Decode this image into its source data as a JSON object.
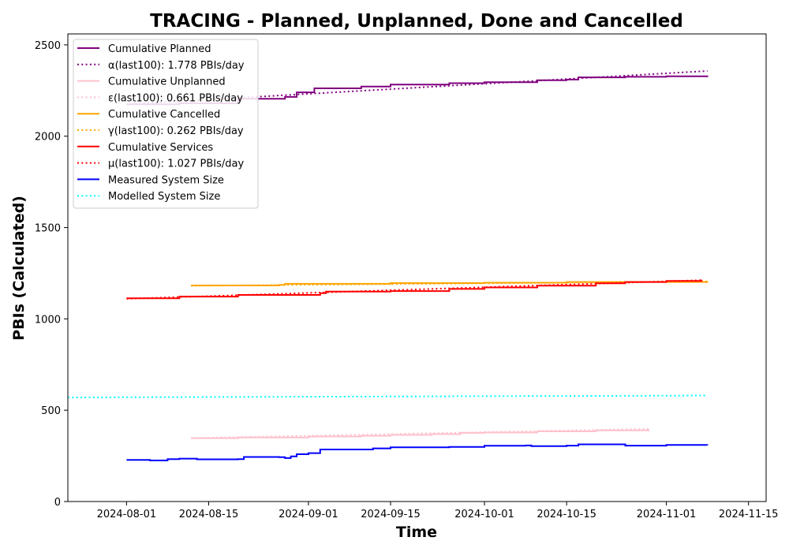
{
  "chart_data": {
    "type": "line",
    "title": "TRACING - Planned, Unplanned, Done  and Cancelled",
    "xlabel": "Time",
    "ylabel": "PBIs (Calculated)",
    "xlim": [
      "2024-07-22",
      "2024-11-18"
    ],
    "ylim": [
      0,
      2560
    ],
    "x_ticks": [
      "2024-08-01",
      "2024-08-15",
      "2024-09-01",
      "2024-09-15",
      "2024-10-01",
      "2024-10-15",
      "2024-11-01",
      "2024-11-15"
    ],
    "y_ticks": [
      0,
      500,
      1000,
      1500,
      2000,
      2500
    ],
    "grid": false,
    "legend_position": "top-left",
    "series": [
      {
        "name": "Cumulative Planned",
        "style": "solid",
        "color": "#800080",
        "points": [
          [
            "2024-08-01",
            2175
          ],
          [
            "2024-08-10",
            2180
          ],
          [
            "2024-08-20",
            2205
          ],
          [
            "2024-08-28",
            2215
          ],
          [
            "2024-08-30",
            2240
          ],
          [
            "2024-09-02",
            2262
          ],
          [
            "2024-09-10",
            2272
          ],
          [
            "2024-09-15",
            2283
          ],
          [
            "2024-09-25",
            2290
          ],
          [
            "2024-10-01",
            2296
          ],
          [
            "2024-10-10",
            2306
          ],
          [
            "2024-10-15",
            2310
          ],
          [
            "2024-10-17",
            2322
          ],
          [
            "2024-10-25",
            2325
          ],
          [
            "2024-11-01",
            2328
          ],
          [
            "2024-11-08",
            2332
          ]
        ]
      },
      {
        "name": "α(last100): 1.778 PBIs/day",
        "style": "dotted",
        "color": "#800080",
        "points": [
          [
            "2024-08-01",
            2175
          ],
          [
            "2024-11-08",
            2357
          ]
        ]
      },
      {
        "name": "Cumulative Unplanned",
        "style": "solid",
        "color": "#ffc0cb",
        "points": [
          [
            "2024-08-12",
            347
          ],
          [
            "2024-08-20",
            351
          ],
          [
            "2024-09-01",
            356
          ],
          [
            "2024-09-10",
            360
          ],
          [
            "2024-09-15",
            365
          ],
          [
            "2024-09-22",
            369
          ],
          [
            "2024-09-27",
            376
          ],
          [
            "2024-10-01",
            378
          ],
          [
            "2024-10-10",
            384
          ],
          [
            "2024-10-20",
            390
          ],
          [
            "2024-10-29",
            395
          ]
        ]
      },
      {
        "name": "ε(last100): 0.661 PBIs/day",
        "style": "dotted",
        "color": "#ffc0cb",
        "points": [
          [
            "2024-08-12",
            347
          ],
          [
            "2024-10-29",
            398
          ]
        ]
      },
      {
        "name": "Cumulative Cancelled",
        "style": "solid",
        "color": "#ffa500",
        "points": [
          [
            "2024-08-12",
            1183
          ],
          [
            "2024-08-27",
            1186
          ],
          [
            "2024-08-28",
            1192
          ],
          [
            "2024-09-15",
            1196
          ],
          [
            "2024-10-01",
            1198
          ],
          [
            "2024-10-15",
            1202
          ],
          [
            "2024-11-08",
            1206
          ]
        ]
      },
      {
        "name": "γ(last100): 0.262 PBIs/day",
        "style": "dotted",
        "color": "#ffa500",
        "points": [
          [
            "2024-08-12",
            1181
          ],
          [
            "2024-11-08",
            1205
          ]
        ]
      },
      {
        "name": "Cumulative Services",
        "style": "solid",
        "color": "#ff0000",
        "points": [
          [
            "2024-08-01",
            1113
          ],
          [
            "2024-08-10",
            1122
          ],
          [
            "2024-08-20",
            1131
          ],
          [
            "2024-09-03",
            1141
          ],
          [
            "2024-09-04",
            1149
          ],
          [
            "2024-09-15",
            1152
          ],
          [
            "2024-09-25",
            1164
          ],
          [
            "2024-10-01",
            1172
          ],
          [
            "2024-10-10",
            1182
          ],
          [
            "2024-10-20",
            1195
          ],
          [
            "2024-10-25",
            1202
          ],
          [
            "2024-11-01",
            1208
          ],
          [
            "2024-11-07",
            1215
          ]
        ]
      },
      {
        "name": "μ(last100): 1.027 PBIs/day",
        "style": "dotted",
        "color": "#ff0000",
        "points": [
          [
            "2024-08-01",
            1110
          ],
          [
            "2024-11-07",
            1212
          ]
        ]
      },
      {
        "name": "Measured System Size",
        "style": "solid",
        "color": "#0000ff",
        "points": [
          [
            "2024-08-01",
            228
          ],
          [
            "2024-08-05",
            225
          ],
          [
            "2024-08-08",
            232
          ],
          [
            "2024-08-10",
            235
          ],
          [
            "2024-08-13",
            231
          ],
          [
            "2024-08-20",
            232
          ],
          [
            "2024-08-21",
            244
          ],
          [
            "2024-08-27",
            243
          ],
          [
            "2024-08-28",
            238
          ],
          [
            "2024-08-29",
            247
          ],
          [
            "2024-08-30",
            259
          ],
          [
            "2024-09-01",
            265
          ],
          [
            "2024-09-03",
            285
          ],
          [
            "2024-09-05",
            285
          ],
          [
            "2024-09-12",
            291
          ],
          [
            "2024-09-15",
            297
          ],
          [
            "2024-09-25",
            299
          ],
          [
            "2024-10-01",
            305
          ],
          [
            "2024-10-08",
            307
          ],
          [
            "2024-10-09",
            303
          ],
          [
            "2024-10-15",
            306
          ],
          [
            "2024-10-17",
            313
          ],
          [
            "2024-10-23",
            313
          ],
          [
            "2024-10-25",
            306
          ],
          [
            "2024-11-01",
            310
          ],
          [
            "2024-11-08",
            309
          ]
        ]
      },
      {
        "name": "Modelled System Size",
        "style": "dotted",
        "color": "#00ffff",
        "points": [
          [
            "2024-07-22",
            570
          ],
          [
            "2024-11-08",
            580
          ]
        ]
      }
    ]
  }
}
